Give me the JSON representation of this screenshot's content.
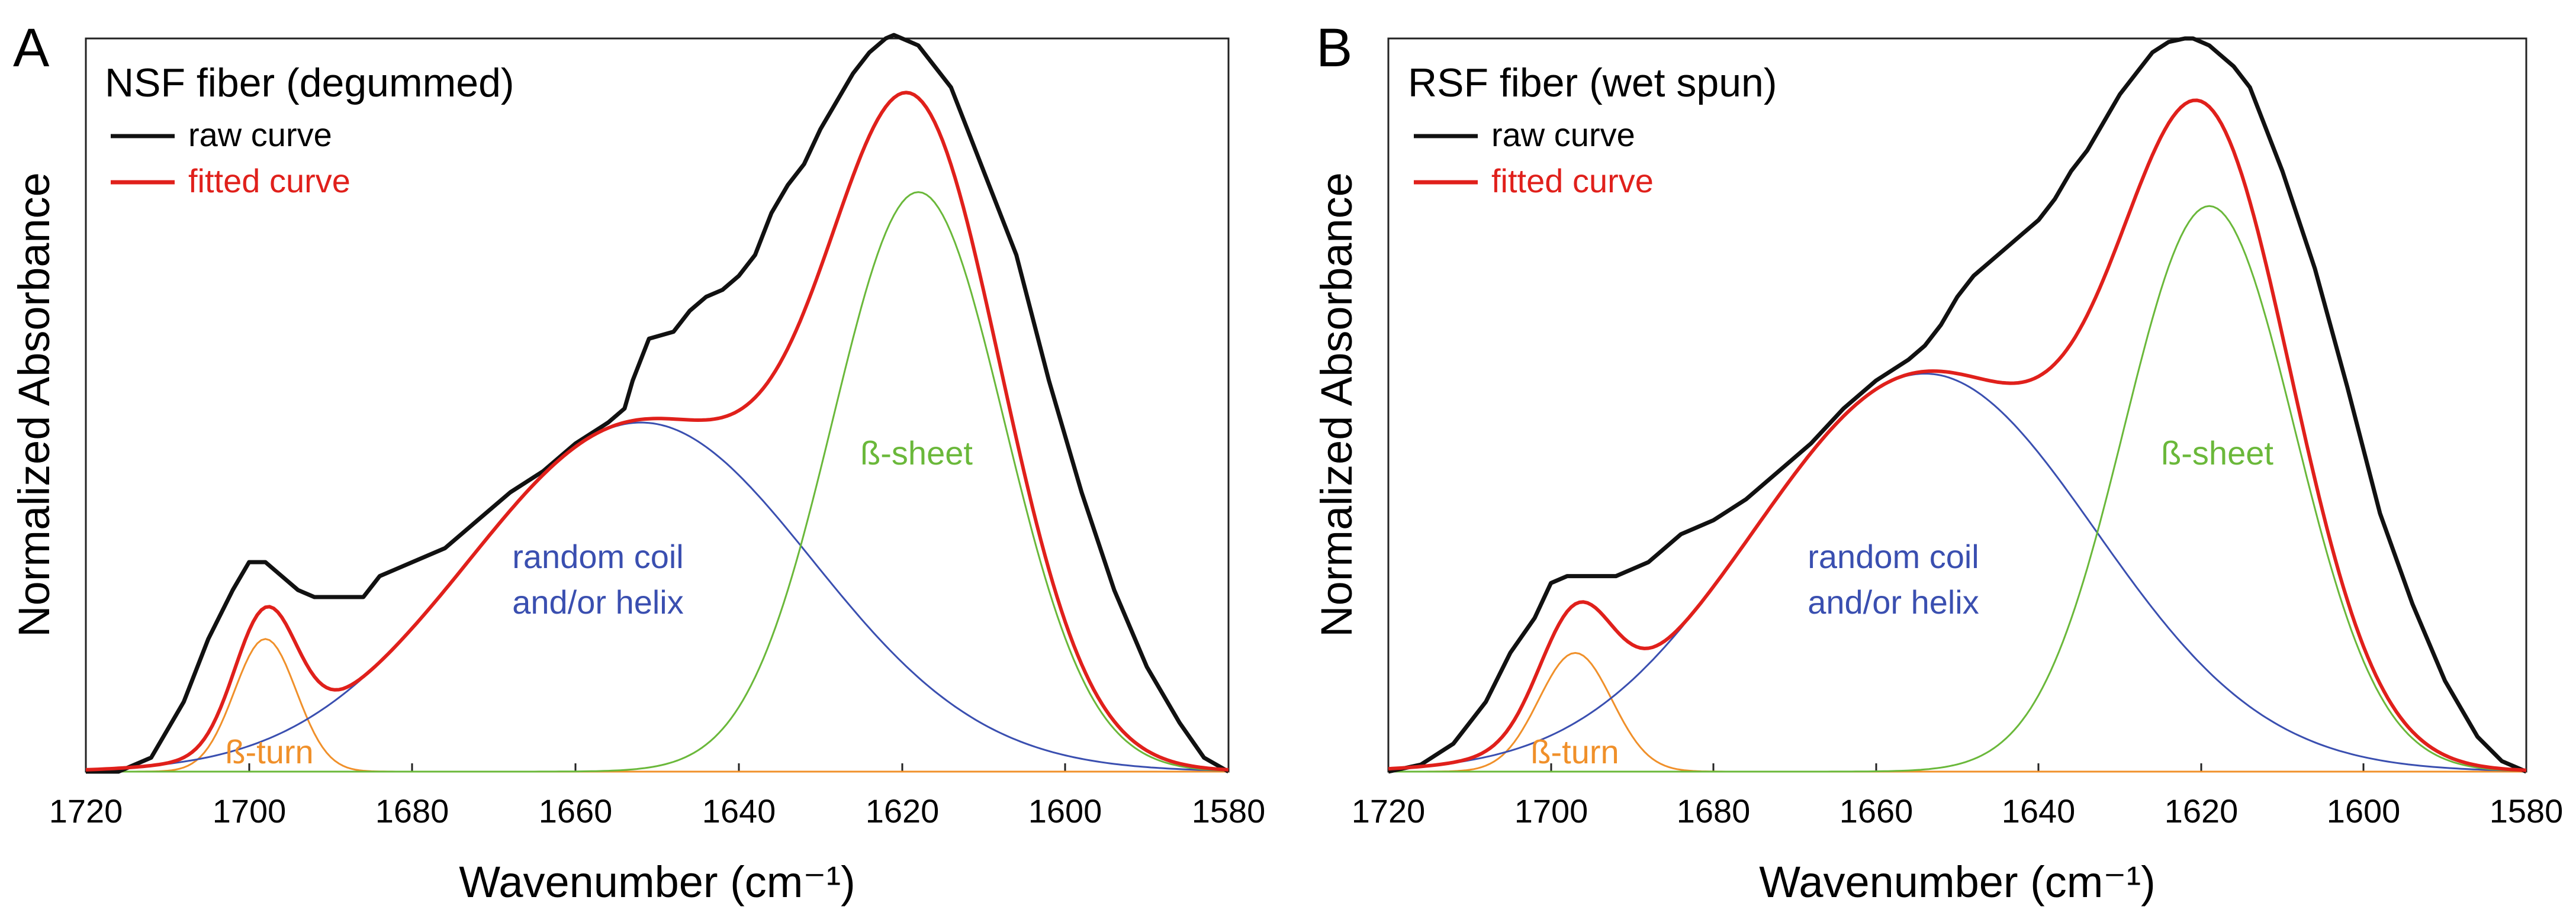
{
  "colors": {
    "raw": "#111111",
    "fitted": "#e0201b",
    "turn": "#f0902a",
    "coil": "#3a4fb0",
    "sheet": "#6ab83a",
    "axis": "#222222"
  },
  "chart_data": [
    {
      "panel_letter": "A",
      "type": "line",
      "title": "NSF fiber (degummed)",
      "xlabel": "Wavenumber (cm⁻¹)",
      "ylabel": "Normalized Absorbance",
      "xlim": [
        1720,
        1580
      ],
      "x_reversed": true,
      "ylim": [
        0,
        1.05
      ],
      "grid": false,
      "xticks": [
        1720,
        1700,
        1680,
        1660,
        1640,
        1620,
        1600,
        1580
      ],
      "legend": {
        "position": "top-left",
        "entries": [
          {
            "name": "raw curve",
            "series": "raw"
          },
          {
            "name": "fitted curve",
            "series": "fitted"
          }
        ]
      },
      "bands": [
        {
          "name": "ß-turn",
          "center": 1698,
          "height": 0.19,
          "sigma": 3.8
        },
        {
          "name": "random coil\nand/or helix",
          "label_lines": [
            "random coil",
            "and/or helix"
          ],
          "center": 1652,
          "height": 0.5,
          "sigma": 21
        },
        {
          "name": "ß-sheet",
          "center": 1618,
          "height": 0.83,
          "sigma": 10.5
        }
      ],
      "series": [
        {
          "name": "raw curve",
          "key": "raw",
          "x": [
            1720,
            1716,
            1712,
            1708,
            1705,
            1702,
            1700,
            1698,
            1696,
            1694,
            1692,
            1690,
            1688,
            1686,
            1684,
            1682,
            1680,
            1676,
            1672,
            1668,
            1664,
            1660,
            1656,
            1654,
            1653,
            1651,
            1648,
            1646,
            1644,
            1642,
            1640,
            1638,
            1636,
            1634,
            1632,
            1630,
            1628,
            1626,
            1624,
            1622,
            1621,
            1620,
            1619,
            1618,
            1616,
            1614,
            1612,
            1610,
            1606,
            1602,
            1598,
            1594,
            1590,
            1586,
            1583,
            1580
          ],
          "y": [
            0.0,
            0.0,
            0.02,
            0.1,
            0.19,
            0.26,
            0.3,
            0.3,
            0.28,
            0.26,
            0.25,
            0.25,
            0.25,
            0.25,
            0.28,
            0.29,
            0.3,
            0.32,
            0.36,
            0.4,
            0.43,
            0.47,
            0.5,
            0.52,
            0.56,
            0.62,
            0.63,
            0.66,
            0.68,
            0.69,
            0.71,
            0.74,
            0.8,
            0.84,
            0.87,
            0.92,
            0.96,
            1.0,
            1.03,
            1.05,
            1.055,
            1.05,
            1.045,
            1.04,
            1.01,
            0.98,
            0.92,
            0.86,
            0.74,
            0.56,
            0.4,
            0.26,
            0.15,
            0.07,
            0.02,
            0.0
          ]
        },
        {
          "name": "fitted curve",
          "key": "fitted",
          "computed": "sum of bands"
        }
      ],
      "annotations": [
        "ß-turn",
        "random coil",
        "and/or helix",
        "ß-sheet"
      ]
    },
    {
      "panel_letter": "B",
      "type": "line",
      "title": "RSF fiber (wet spun)",
      "xlabel": "Wavenumber (cm⁻¹)",
      "ylabel": "Normalized Absorbance",
      "xlim": [
        1720,
        1580
      ],
      "x_reversed": true,
      "ylim": [
        0,
        1.05
      ],
      "grid": false,
      "xticks": [
        1720,
        1700,
        1680,
        1660,
        1640,
        1620,
        1600,
        1580
      ],
      "legend": {
        "position": "top-left",
        "entries": [
          {
            "name": "raw curve",
            "series": "raw"
          },
          {
            "name": "fitted curve",
            "series": "fitted"
          }
        ]
      },
      "bands": [
        {
          "name": "ß-turn",
          "center": 1697,
          "height": 0.17,
          "sigma": 4.5
        },
        {
          "name": "random coil\nand/or helix",
          "label_lines": [
            "random coil",
            "and/or helix"
          ],
          "center": 1654,
          "height": 0.57,
          "sigma": 21
        },
        {
          "name": "ß-sheet",
          "center": 1619,
          "height": 0.81,
          "sigma": 10.5
        }
      ],
      "series": [
        {
          "name": "raw curve",
          "key": "raw",
          "x": [
            1720,
            1716,
            1712,
            1708,
            1705,
            1702,
            1700,
            1698,
            1696,
            1694,
            1692,
            1690,
            1688,
            1686,
            1684,
            1682,
            1680,
            1676,
            1672,
            1668,
            1664,
            1660,
            1656,
            1654,
            1652,
            1650,
            1648,
            1646,
            1644,
            1642,
            1640,
            1638,
            1636,
            1634,
            1632,
            1630,
            1628,
            1626,
            1624,
            1622,
            1621,
            1620,
            1619,
            1618,
            1616,
            1614,
            1612,
            1610,
            1606,
            1602,
            1598,
            1594,
            1590,
            1586,
            1583,
            1580
          ],
          "y": [
            0.0,
            0.01,
            0.04,
            0.1,
            0.17,
            0.22,
            0.27,
            0.28,
            0.28,
            0.28,
            0.28,
            0.29,
            0.3,
            0.32,
            0.34,
            0.35,
            0.36,
            0.39,
            0.43,
            0.47,
            0.52,
            0.56,
            0.59,
            0.61,
            0.64,
            0.68,
            0.71,
            0.73,
            0.75,
            0.77,
            0.79,
            0.82,
            0.86,
            0.89,
            0.93,
            0.97,
            1.0,
            1.03,
            1.045,
            1.05,
            1.05,
            1.045,
            1.04,
            1.03,
            1.01,
            0.98,
            0.92,
            0.86,
            0.72,
            0.55,
            0.37,
            0.24,
            0.13,
            0.05,
            0.015,
            0.0
          ]
        },
        {
          "name": "fitted curve",
          "key": "fitted",
          "computed": "sum of bands"
        }
      ],
      "annotations": [
        "ß-turn",
        "random coil",
        "and/or helix",
        "ß-sheet"
      ]
    }
  ]
}
